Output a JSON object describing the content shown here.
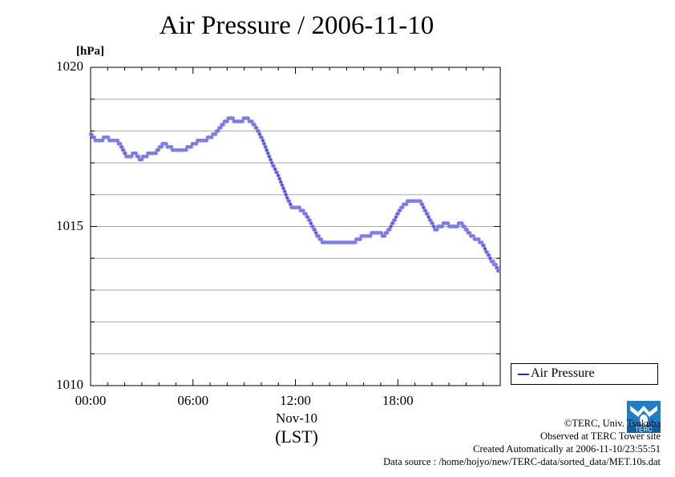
{
  "title": "Air Pressure / 2006-11-10",
  "unit_label": "[hPa]",
  "x_sub_label": "Nov-10",
  "x_lst_label": "(LST)",
  "legend": {
    "label": "Air Pressure",
    "color": "#2a2ae6"
  },
  "credits": {
    "line1": "©TERC, Univ. Tsukuba",
    "line2": "Observed at TERC Tower site",
    "line3": "Created Automatically at 2006-11-10/23:55:51",
    "line4": "Data source : /home/hojyo/new/TERC-data/sorted_data/MET.10s.dat"
  },
  "logo_text": "TERC",
  "chart_data": {
    "type": "line",
    "title": "Air Pressure / 2006-11-10",
    "ylabel": "[hPa]",
    "xlabel": "(LST)",
    "ylim": [
      1010,
      1020
    ],
    "xlim_hours": [
      0,
      24
    ],
    "yticks": [
      {
        "value": 1010,
        "label": "1010"
      },
      {
        "value": 1015,
        "label": "1015"
      },
      {
        "value": 1020,
        "label": "1020"
      }
    ],
    "xticks": [
      {
        "value": 0,
        "label": "00:00"
      },
      {
        "value": 6,
        "label": "06:00"
      },
      {
        "value": 12,
        "label": "12:00"
      },
      {
        "value": 18,
        "label": "18:00"
      }
    ],
    "grid": true,
    "legend_position": "right-bottom",
    "series": [
      {
        "name": "Air Pressure",
        "color": "#2a2ae6",
        "x": [
          0.0,
          0.3,
          0.6,
          0.9,
          1.2,
          1.5,
          1.7,
          1.9,
          2.1,
          2.3,
          2.6,
          2.9,
          3.2,
          3.5,
          3.8,
          4.1,
          4.3,
          4.6,
          4.9,
          5.2,
          5.5,
          5.8,
          6.1,
          6.4,
          6.7,
          7.0,
          7.3,
          7.6,
          7.9,
          8.2,
          8.5,
          8.8,
          9.1,
          9.4,
          9.7,
          10.0,
          10.3,
          10.6,
          10.9,
          11.2,
          11.5,
          11.8,
          12.1,
          12.4,
          12.7,
          13.0,
          13.3,
          13.6,
          13.9,
          14.2,
          14.5,
          14.8,
          15.1,
          15.4,
          15.7,
          16.0,
          16.3,
          16.6,
          16.9,
          17.2,
          17.5,
          17.8,
          18.1,
          18.4,
          18.7,
          19.0,
          19.3,
          19.6,
          19.9,
          20.2,
          20.5,
          20.8,
          21.1,
          21.4,
          21.7,
          22.0,
          22.3,
          22.6,
          22.9,
          23.2,
          23.5,
          23.7,
          23.9
        ],
        "y": [
          1017.9,
          1017.7,
          1017.7,
          1017.8,
          1017.7,
          1017.7,
          1017.6,
          1017.4,
          1017.2,
          1017.2,
          1017.3,
          1017.1,
          1017.2,
          1017.3,
          1017.3,
          1017.5,
          1017.6,
          1017.5,
          1017.4,
          1017.4,
          1017.4,
          1017.5,
          1017.6,
          1017.7,
          1017.7,
          1017.8,
          1017.9,
          1018.1,
          1018.3,
          1018.4,
          1018.3,
          1018.3,
          1018.4,
          1018.3,
          1018.1,
          1017.8,
          1017.4,
          1017.0,
          1016.7,
          1016.3,
          1015.9,
          1015.6,
          1015.6,
          1015.5,
          1015.3,
          1015.0,
          1014.7,
          1014.5,
          1014.5,
          1014.5,
          1014.5,
          1014.5,
          1014.5,
          1014.5,
          1014.6,
          1014.7,
          1014.7,
          1014.8,
          1014.8,
          1014.7,
          1014.9,
          1015.2,
          1015.5,
          1015.7,
          1015.8,
          1015.8,
          1015.8,
          1015.5,
          1015.2,
          1014.9,
          1015.0,
          1015.1,
          1015.0,
          1015.0,
          1015.1,
          1014.9,
          1014.7,
          1014.6,
          1014.5,
          1014.2,
          1013.9,
          1013.8,
          1013.6
        ]
      }
    ]
  }
}
